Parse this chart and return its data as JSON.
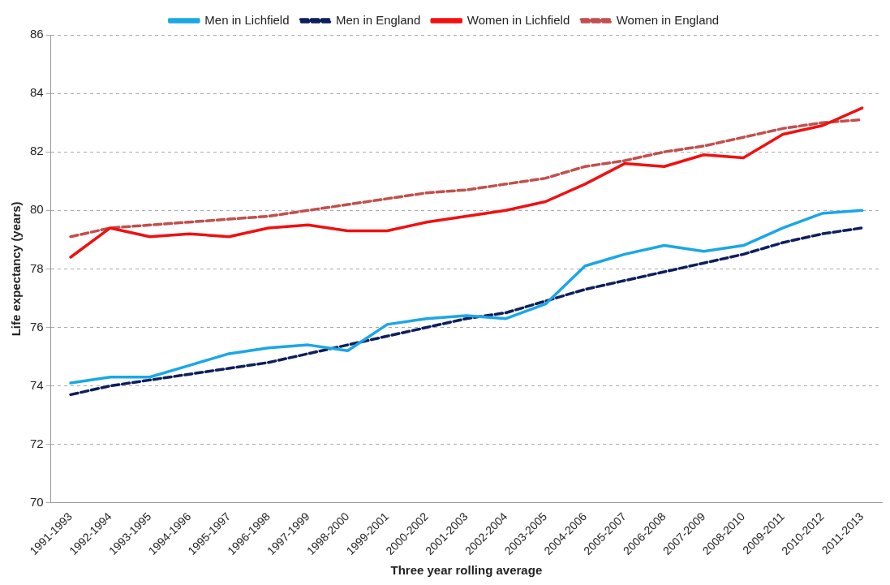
{
  "chart_data": {
    "type": "line",
    "xlabel": "Three year rolling average",
    "ylabel": "Life expectancy (years)",
    "categories": [
      "1991-1993",
      "1992-1994",
      "1993-1995",
      "1994-1996",
      "1995-1997",
      "1996-1998",
      "1997-1999",
      "1998-2000",
      "1999-2001",
      "2000-2002",
      "2001-2003",
      "2002-2004",
      "2003-2005",
      "2004-2006",
      "2005-2007",
      "2006-2008",
      "2007-2009",
      "2008-2010",
      "2009-2011",
      "2010-2012",
      "2011-2013"
    ],
    "series": [
      {
        "name": "Men in Lichfield",
        "color": "#1aa7e6",
        "line_style": "solid",
        "values": [
          74.1,
          74.3,
          74.3,
          74.7,
          75.1,
          75.3,
          75.4,
          75.2,
          76.1,
          76.3,
          76.4,
          76.3,
          76.8,
          78.1,
          78.5,
          78.8,
          78.6,
          78.8,
          79.4,
          79.9,
          80.0
        ]
      },
      {
        "name": "Men in England",
        "color": "#0d1f5c",
        "line_style": "dashed",
        "values": [
          73.7,
          74.0,
          74.2,
          74.4,
          74.6,
          74.8,
          75.1,
          75.4,
          75.7,
          76.0,
          76.3,
          76.5,
          76.9,
          77.3,
          77.6,
          77.9,
          78.2,
          78.5,
          78.9,
          79.2,
          79.4
        ]
      },
      {
        "name": "Women in Lichfield",
        "color": "#f01010",
        "line_style": "solid",
        "values": [
          78.4,
          79.4,
          79.1,
          79.2,
          79.1,
          79.4,
          79.5,
          79.3,
          79.3,
          79.6,
          79.8,
          80.0,
          80.3,
          80.9,
          81.6,
          81.5,
          81.9,
          81.8,
          82.6,
          82.9,
          83.5
        ]
      },
      {
        "name": "Women in England",
        "color": "#c0504d",
        "line_style": "dashed",
        "values": [
          79.1,
          79.4,
          79.5,
          79.6,
          79.7,
          79.8,
          80.0,
          80.2,
          80.4,
          80.6,
          80.7,
          80.9,
          81.1,
          81.5,
          81.7,
          82.0,
          82.2,
          82.5,
          82.8,
          83.0,
          83.1
        ]
      }
    ],
    "ylim": [
      70,
      86
    ],
    "yticks": [
      70,
      72,
      74,
      76,
      78,
      80,
      82,
      84,
      86
    ],
    "grid": "y",
    "legend": "top",
    "marker": "none"
  }
}
